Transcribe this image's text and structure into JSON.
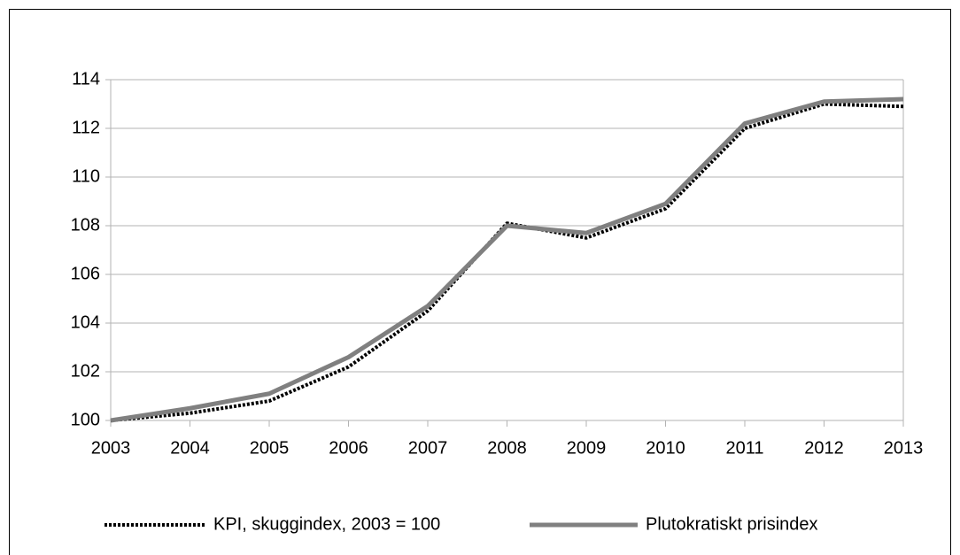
{
  "chart_data": {
    "type": "line",
    "categories": [
      "2003",
      "2004",
      "2005",
      "2006",
      "2007",
      "2008",
      "2009",
      "2010",
      "2011",
      "2012",
      "2013"
    ],
    "series": [
      {
        "name": "KPI, skuggindex, 2003 = 100",
        "color": "#000000",
        "dash": "dotted",
        "values": [
          100,
          100.3,
          100.8,
          102.2,
          104.5,
          108.1,
          107.5,
          108.7,
          112.0,
          113.0,
          112.9
        ]
      },
      {
        "name": "Plutokratiskt prisindex",
        "color": "#808080",
        "dash": "solid",
        "values": [
          100,
          100.5,
          101.1,
          102.6,
          104.7,
          108.0,
          107.7,
          108.9,
          112.2,
          113.1,
          113.2
        ]
      }
    ],
    "ylim": [
      100,
      114
    ],
    "yticks": [
      100,
      102,
      104,
      106,
      108,
      110,
      112,
      114
    ],
    "grid": true,
    "legend": "bottom"
  }
}
